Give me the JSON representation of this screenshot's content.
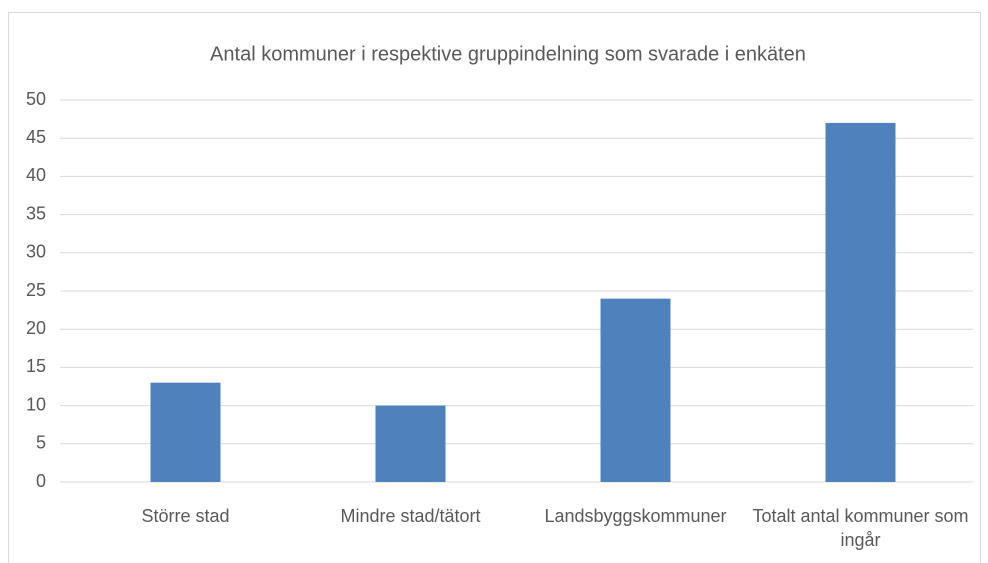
{
  "chart_data": {
    "type": "bar",
    "title": "Antal kommuner i respektive gruppindelning som svarade i enkäten",
    "categories": [
      "Större stad",
      "Mindre stad/tätort",
      "Landsbyggskommuner",
      "Totalt antal kommuner som ingår"
    ],
    "values": [
      13,
      10,
      24,
      47
    ],
    "color": "#4f81bd",
    "ylim": [
      0,
      50
    ],
    "yticks": [
      0,
      5,
      10,
      15,
      20,
      25,
      30,
      35,
      40,
      45,
      50
    ],
    "grid": true
  }
}
